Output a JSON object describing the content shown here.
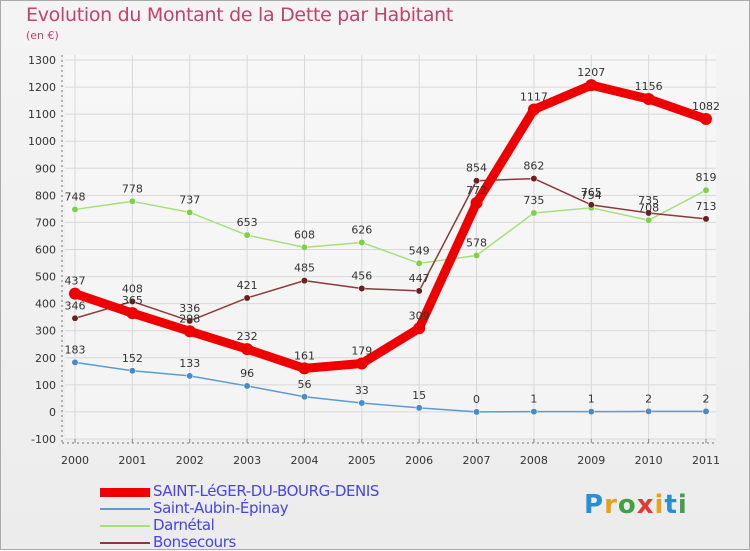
{
  "title": "Evolution du Montant de la Dette par Habitant",
  "subtitle": "(en €)",
  "logo": {
    "text": "Proxiti",
    "letter_colors": [
      "#2a8ed3",
      "#e6a21b",
      "#43a047",
      "#e53935",
      "#e6a21b",
      "#2a8ed3",
      "#43a047"
    ]
  },
  "chart_data": {
    "type": "line",
    "x": [
      "2000",
      "2001",
      "2002",
      "2003",
      "2004",
      "2005",
      "2006",
      "2007",
      "2008",
      "2009",
      "2010",
      "2011"
    ],
    "ylim": [
      -100,
      1300
    ],
    "yticks": [
      -100,
      0,
      100,
      200,
      300,
      400,
      500,
      600,
      700,
      800,
      900,
      1000,
      1100,
      1200,
      1300
    ],
    "grid": true,
    "series": [
      {
        "name": "SAINT-LéGER-DU-BOURG-DENIS",
        "color": "#ee0000",
        "point_color": "#ee0000",
        "values": [
          437,
          365,
          298,
          232,
          161,
          179,
          309,
          772,
          1117,
          1207,
          1156,
          1082
        ]
      },
      {
        "name": "Saint-Aubin-Épinay",
        "color": "#5c9bd1",
        "point_color": "#4a8ac8",
        "values": [
          183,
          152,
          133,
          96,
          56,
          33,
          15,
          0,
          1,
          1,
          2,
          2
        ]
      },
      {
        "name": "Darnétal",
        "color": "#a6e07a",
        "point_color": "#7ed04b",
        "values": [
          748,
          778,
          737,
          653,
          608,
          626,
          549,
          578,
          735,
          754,
          708,
          819
        ]
      },
      {
        "name": "Bonsecours",
        "color": "#8a3a3a",
        "point_color": "#6b1f1f",
        "values": [
          346,
          408,
          336,
          421,
          485,
          456,
          447,
          854,
          862,
          765,
          735,
          713
        ]
      }
    ]
  }
}
